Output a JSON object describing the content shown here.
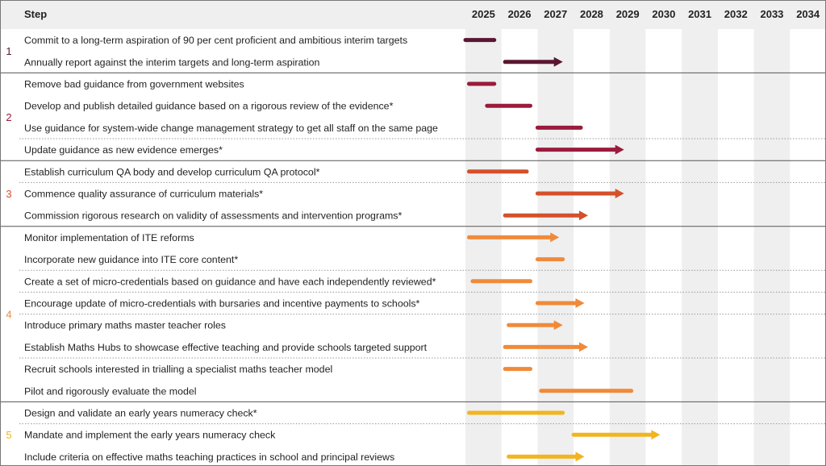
{
  "chart_data": {
    "type": "gantt",
    "header": {
      "step_label": "Step"
    },
    "years": [
      "2025",
      "2026",
      "2027",
      "2028",
      "2029",
      "2030",
      "2031",
      "2032",
      "2033",
      "2034"
    ],
    "groups": [
      {
        "number": "1",
        "color": "#5a1630",
        "rows": [
          {
            "label": "Commit to a long-term aspiration of 90 per cent proficient and ambitious interim targets",
            "start": 2025.0,
            "end": 2025.8,
            "arrow": false
          },
          {
            "label": "Annually report against the interim targets and long-term aspiration",
            "start": 2026.1,
            "end": 2027.7,
            "arrow": true
          }
        ]
      },
      {
        "number": "2",
        "color": "#9a1b3b",
        "rows": [
          {
            "label": "Remove bad guidance from government websites",
            "start": 2025.1,
            "end": 2025.8,
            "arrow": false
          },
          {
            "label": "Develop and publish detailed guidance based on a rigorous review of the evidence*",
            "start": 2025.6,
            "end": 2026.8,
            "arrow": false
          },
          {
            "label": "Use guidance for system-wide change management strategy to get all staff on the same page",
            "start": 2027.0,
            "end": 2028.2,
            "arrow": false
          },
          {
            "label": "Update guidance as new evidence emerges*",
            "start": 2027.0,
            "end": 2029.4,
            "arrow": true
          }
        ]
      },
      {
        "number": "3",
        "color": "#d4502b",
        "rows": [
          {
            "label": "Establish curriculum QA body and develop curriculum QA protocol*",
            "start": 2025.1,
            "end": 2026.7,
            "arrow": false
          },
          {
            "label": "Commence quality assurance of curriculum materials*",
            "start": 2027.0,
            "end": 2029.4,
            "arrow": true
          },
          {
            "label": "Commission rigorous research on validity of assessments and intervention programs*",
            "start": 2026.1,
            "end": 2028.4,
            "arrow": true
          }
        ]
      },
      {
        "number": "4",
        "color": "#f08a3a",
        "rows": [
          {
            "label": "Monitor implementation of ITE reforms",
            "start": 2025.1,
            "end": 2027.6,
            "arrow": true
          },
          {
            "label": "Incorporate new guidance into ITE core content*",
            "start": 2027.0,
            "end": 2027.7,
            "arrow": false
          },
          {
            "label": "Create a set of micro-credentials based on guidance and have each independently reviewed*",
            "start": 2025.2,
            "end": 2026.8,
            "arrow": false
          },
          {
            "label": "Encourage update of micro-credentials with bursaries and incentive payments to schools*",
            "start": 2027.0,
            "end": 2028.3,
            "arrow": true
          },
          {
            "label": "Introduce primary maths master teacher roles",
            "start": 2026.2,
            "end": 2027.7,
            "arrow": true
          },
          {
            "label": "Establish Maths Hubs to showcase effective teaching and provide schools targeted support",
            "start": 2026.1,
            "end": 2028.4,
            "arrow": true
          },
          {
            "label": "Recruit schools interested in trialling a specialist maths teacher model",
            "start": 2026.1,
            "end": 2026.8,
            "arrow": false
          },
          {
            "label": "Pilot and rigorously evaluate the model",
            "start": 2027.1,
            "end": 2029.6,
            "arrow": false
          }
        ]
      },
      {
        "number": "5",
        "color": "#f2b520",
        "rows": [
          {
            "label": "Design and validate an early years numeracy check*",
            "start": 2025.1,
            "end": 2027.7,
            "arrow": false
          },
          {
            "label": "Mandate and implement the early years numeracy check",
            "start": 2028.0,
            "end": 2030.4,
            "arrow": true
          },
          {
            "label": "Include criteria on effective maths teaching practices in school and principal reviews",
            "start": 2026.2,
            "end": 2028.3,
            "arrow": true
          }
        ]
      }
    ],
    "dotted_after_row": [
      5,
      7,
      11,
      12,
      13,
      15,
      18
    ],
    "colors": {
      "column_shade": "#efefef",
      "header_bg": "#efefef",
      "divider": "#555555",
      "dotted": "#999999"
    }
  }
}
